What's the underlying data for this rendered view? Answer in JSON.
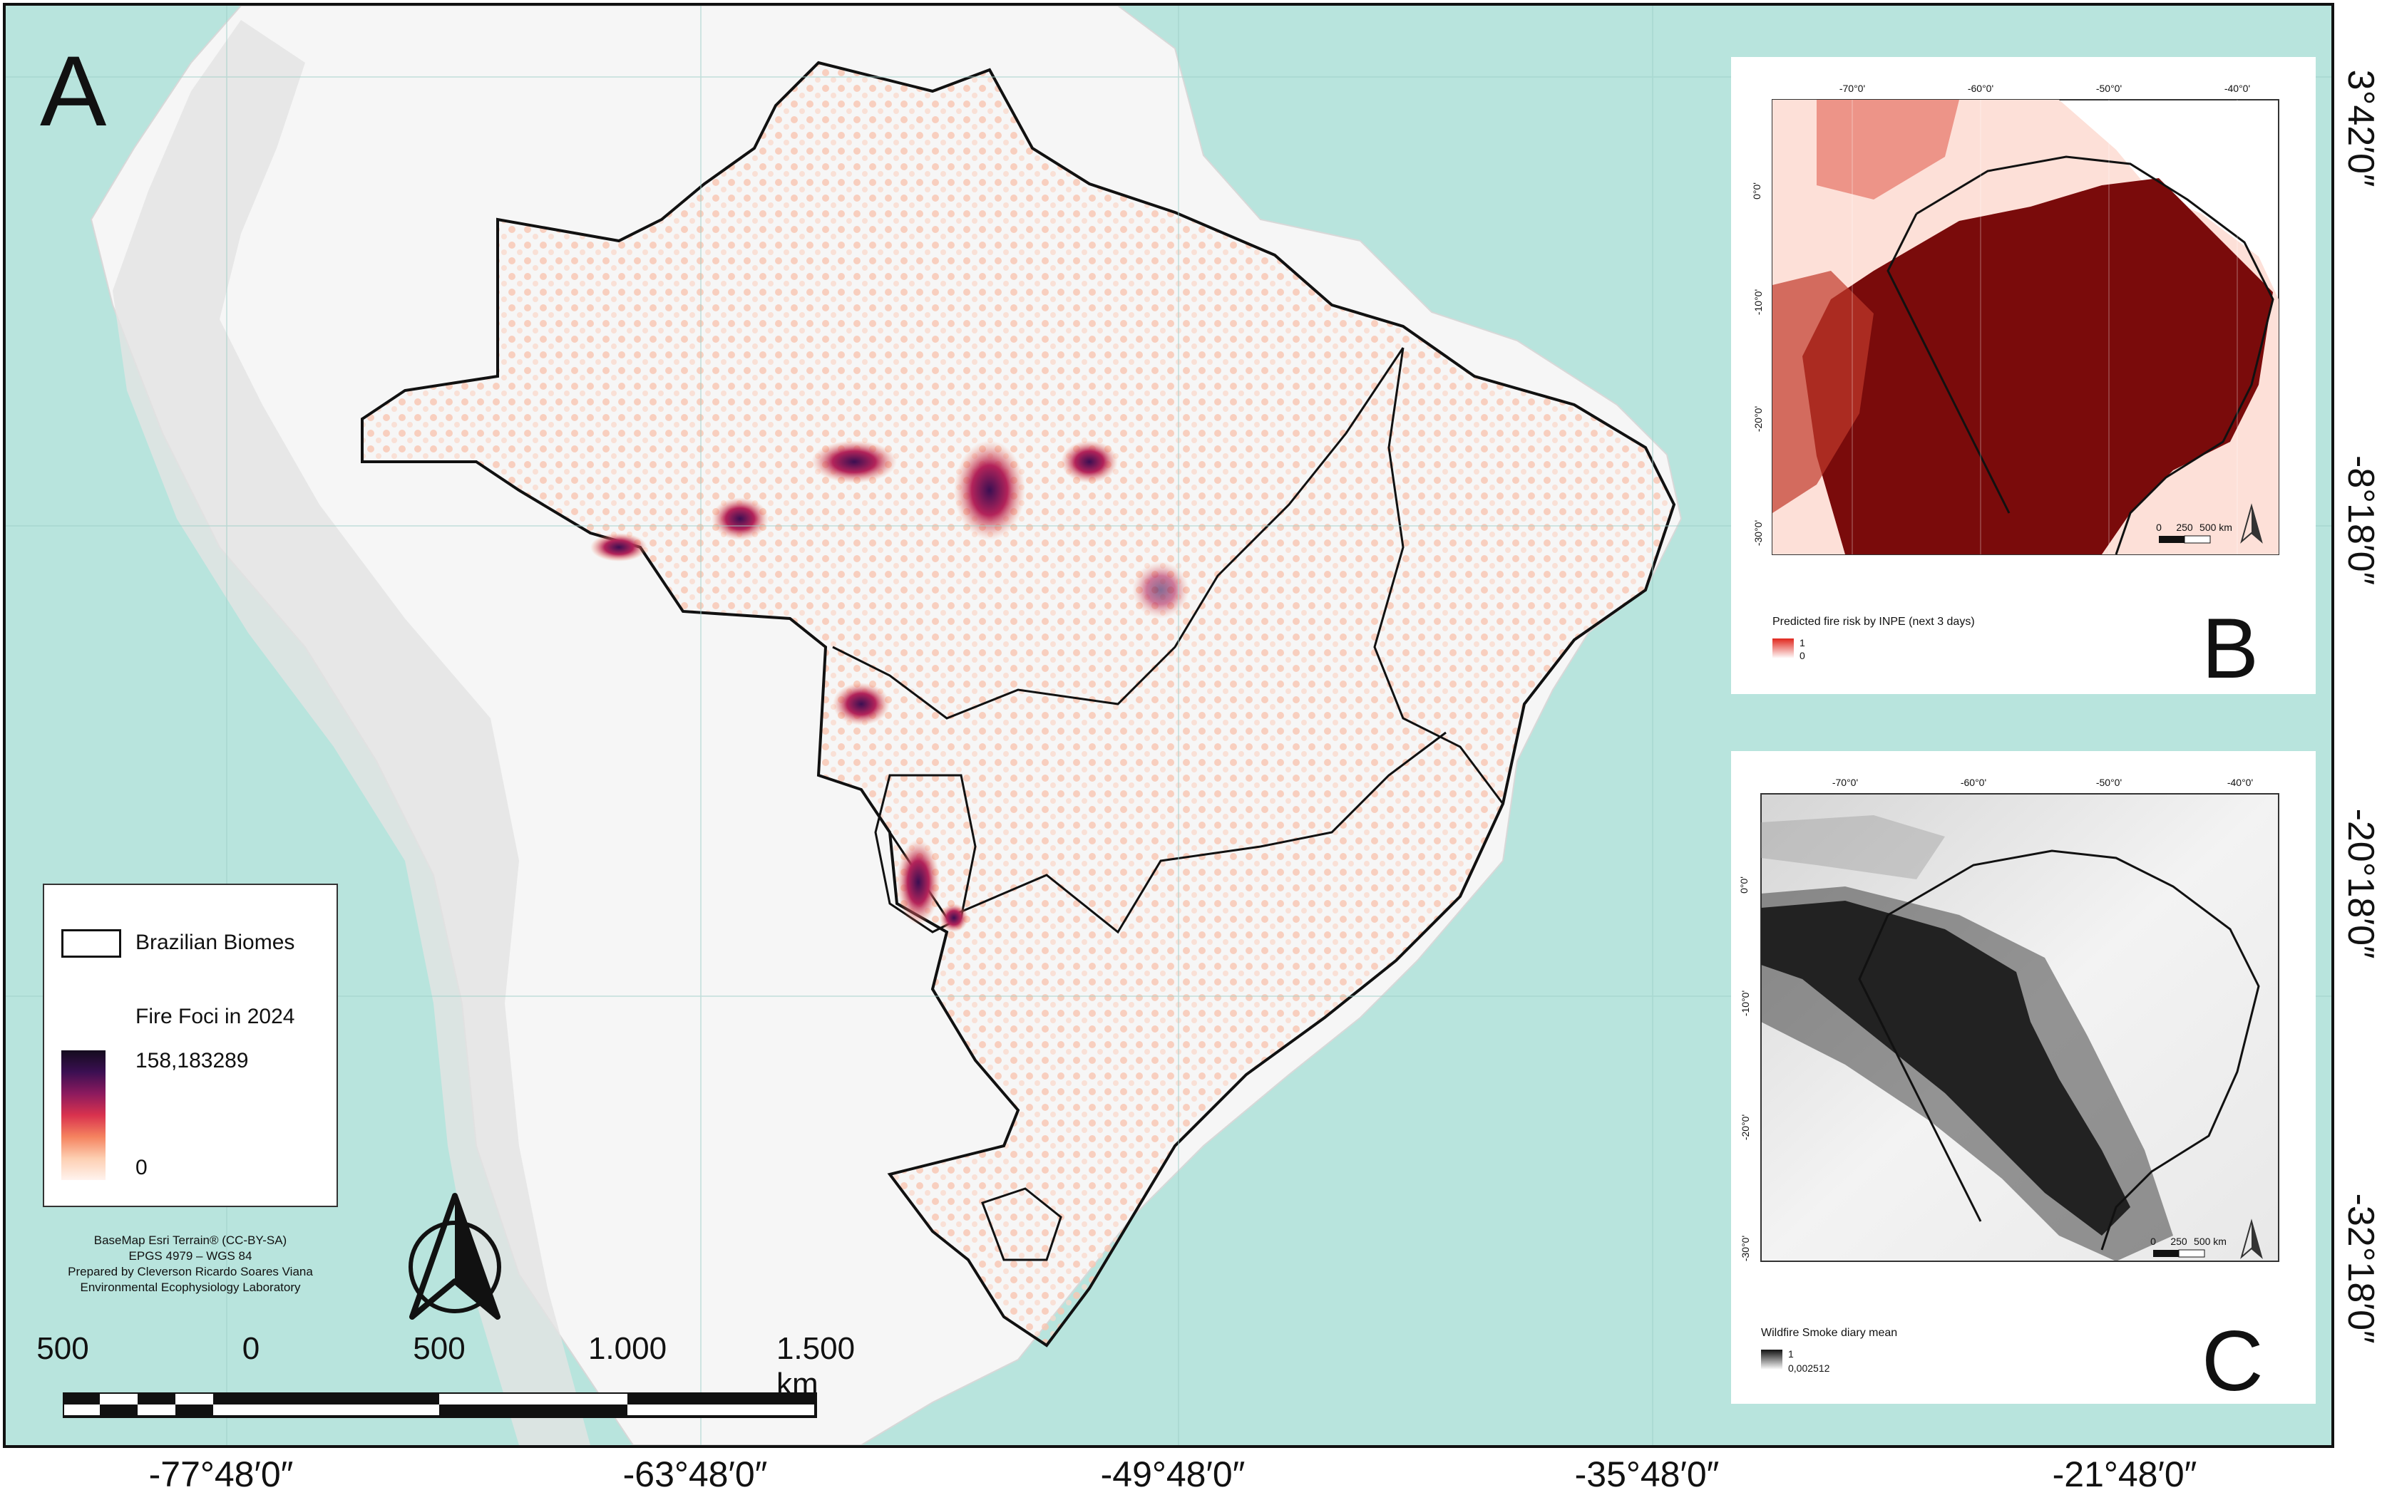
{
  "panel_a": {
    "letter": "A",
    "legend": {
      "biomes_label": "Brazilian Biomes",
      "fire_title": "Fire Foci in 2024",
      "max_value": "158,183289",
      "min_value": "0"
    },
    "credits": {
      "line1": "BaseMap Esri Terrain® (CC-BY-SA)",
      "line2": "EPGS 4979 – WGS 84",
      "line3": "Prepared by Cleverson Ricardo Soares Viana",
      "line4": "Environmental Ecophysiology Laboratory"
    },
    "scale": {
      "t0": "500",
      "t1": "0",
      "t2": "500",
      "t3": "1.000",
      "t4": "1.500 km"
    }
  },
  "panel_b": {
    "letter": "B",
    "legend_title": "Predicted fire risk by INPE (next 3 days)",
    "legend_max": "1",
    "legend_min": "0",
    "scale": {
      "t0": "0",
      "t1": "250",
      "t2": "500 km"
    },
    "lon_ticks": [
      "-70°0'",
      "-60°0'",
      "-50°0'",
      "-40°0'"
    ],
    "lat_ticks": [
      "0°0'",
      "-10°0'",
      "-20°0'",
      "-30°0'"
    ]
  },
  "panel_c": {
    "letter": "C",
    "legend_title": "Wildfire Smoke diary mean",
    "legend_max": "1",
    "legend_min": "0,002512",
    "scale": {
      "t0": "0",
      "t1": "250",
      "t2": "500 km"
    },
    "lon_ticks": [
      "-70°0'",
      "-60°0'",
      "-50°0'",
      "-40°0'"
    ],
    "lat_ticks": [
      "0°0'",
      "-10°0'",
      "-20°0'",
      "-30°0'"
    ]
  },
  "lat_labels": [
    "3°42′0″",
    "-8°18′0″",
    "-20°18′0″",
    "-32°18′0″"
  ],
  "lon_labels": [
    "-77°48′0″",
    "-63°48′0″",
    "-49°48′0″",
    "-35°48′0″",
    "-21°48′0″"
  ],
  "colors": {
    "ocean": "#b8e4dd",
    "land": "#f7f7f7",
    "fire_low": "#fbd3c2",
    "fire_high": "#3b0f52",
    "risk": "#7a0b0b"
  }
}
